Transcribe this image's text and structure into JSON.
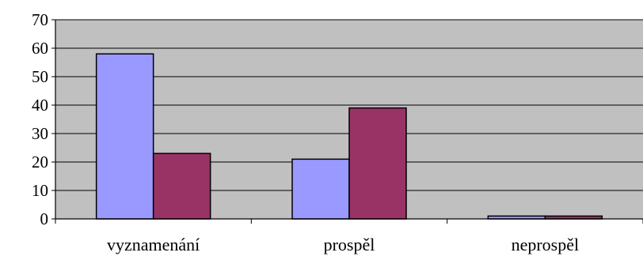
{
  "chart_data": {
    "type": "bar",
    "title": "",
    "xlabel": "",
    "ylabel": "",
    "categories": [
      "vyznamenání",
      "prospěl",
      "neprospěl"
    ],
    "series": [
      {
        "color": "#9999ff",
        "values": [
          58,
          21,
          1
        ]
      },
      {
        "color": "#993366",
        "values": [
          23,
          39,
          1
        ]
      }
    ],
    "ylim": [
      0,
      70
    ],
    "yticks": [
      "0",
      "10",
      "20",
      "30",
      "40",
      "50",
      "60",
      "70"
    ],
    "grid": true,
    "legend": "none",
    "plot_background": "#c0c0c0"
  }
}
